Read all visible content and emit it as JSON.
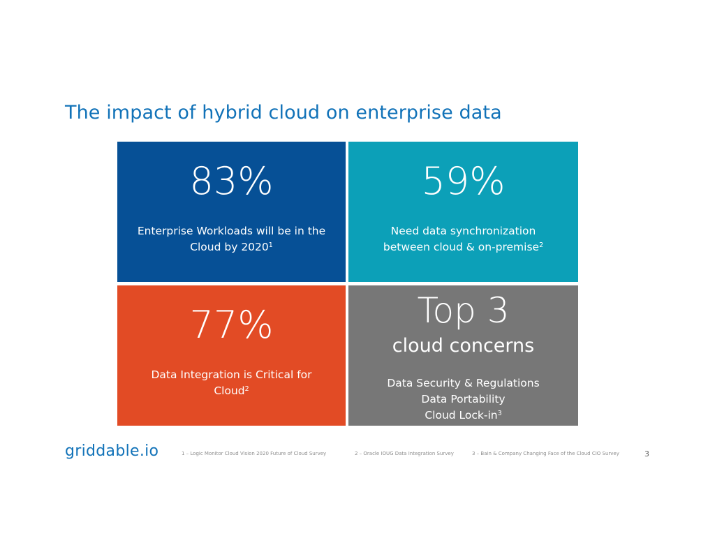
{
  "title": "The impact of hybrid cloud on enterprise data",
  "tiles": [
    {
      "stat": "83%",
      "desc_line1": "Enterprise Workloads will be in the",
      "desc_line2": "Cloud by 2020",
      "note": "1",
      "color": "#065096"
    },
    {
      "stat": "59%",
      "desc_line1": "Need data synchronization",
      "desc_line2": "between cloud & on-premise",
      "note": "2",
      "color": "#0ca0b8"
    },
    {
      "stat": "77%",
      "desc_line1": "Data Integration is Critical for",
      "desc_line2": "Cloud",
      "note": "2",
      "color": "#e24b25"
    },
    {
      "stat": "Top 3",
      "subtitle": "cloud concerns",
      "items": [
        "Data Security & Regulations",
        "Data Portability",
        "Cloud Lock-in"
      ],
      "note": "3",
      "color": "#777777"
    }
  ],
  "footer": {
    "logo": "griddable.io",
    "footnotes": [
      "1 – Logic Monitor Cloud Vision 2020 Future of Cloud Survey",
      "2 – Oracle IOUG Data Integration Survey",
      "3 – Bain & Company Changing Face of the Cloud CIO Survey"
    ],
    "page_number": "3"
  },
  "colors": {
    "accent": "#1172b8"
  }
}
